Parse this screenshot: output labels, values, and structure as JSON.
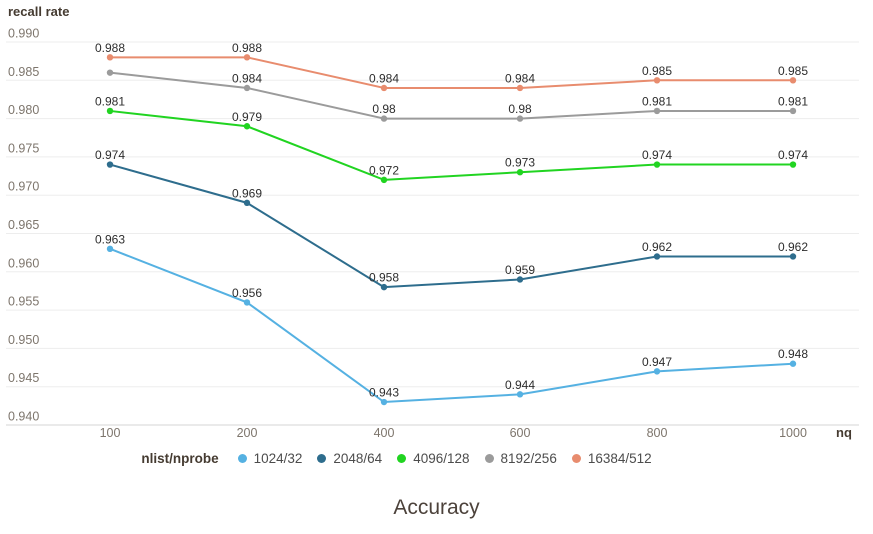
{
  "chart_data": {
    "type": "line",
    "title": "Accuracy",
    "ylabel": "recall rate",
    "xlabel": "nq",
    "legend_title": "nlist/nprobe",
    "legend_position": "bottom",
    "grid": true,
    "categories": [
      100,
      200,
      400,
      600,
      800,
      1000
    ],
    "ylim": [
      0.94,
      0.99
    ],
    "y_ticks": [
      0.99,
      0.985,
      0.98,
      0.975,
      0.97,
      0.965,
      0.96,
      0.955,
      0.95,
      0.945,
      0.94
    ],
    "series": [
      {
        "name": "1024/32",
        "color": "#55b1e2",
        "values": [
          0.963,
          0.956,
          0.943,
          0.944,
          0.947,
          0.948
        ],
        "labels": [
          "0.963",
          "0.956",
          "0.943",
          "0.944",
          "0.947",
          "0.948"
        ]
      },
      {
        "name": "2048/64",
        "color": "#2e6d8d",
        "values": [
          0.974,
          0.969,
          0.958,
          0.959,
          0.962,
          0.962
        ],
        "labels": [
          "0.974",
          "0.969",
          "0.958",
          "0.959",
          "0.962",
          "0.962"
        ]
      },
      {
        "name": "4096/128",
        "color": "#21d421",
        "values": [
          0.981,
          0.979,
          0.972,
          0.973,
          0.974,
          0.974
        ],
        "labels": [
          "0.981",
          "0.979",
          "0.972",
          "0.973",
          "0.974",
          "0.974"
        ]
      },
      {
        "name": "8192/256",
        "color": "#9b9b9b",
        "values": [
          0.986,
          0.984,
          0.98,
          0.98,
          0.981,
          0.981
        ],
        "labels": [
          "",
          "0.984",
          "0.98",
          "0.98",
          "0.981",
          "0.981"
        ]
      },
      {
        "name": "16384/512",
        "color": "#e88c6e",
        "values": [
          0.988,
          0.988,
          0.984,
          0.984,
          0.985,
          0.985
        ],
        "labels": [
          "0.988",
          "0.988",
          "0.984",
          "0.984",
          "0.985",
          "0.985"
        ]
      }
    ]
  }
}
